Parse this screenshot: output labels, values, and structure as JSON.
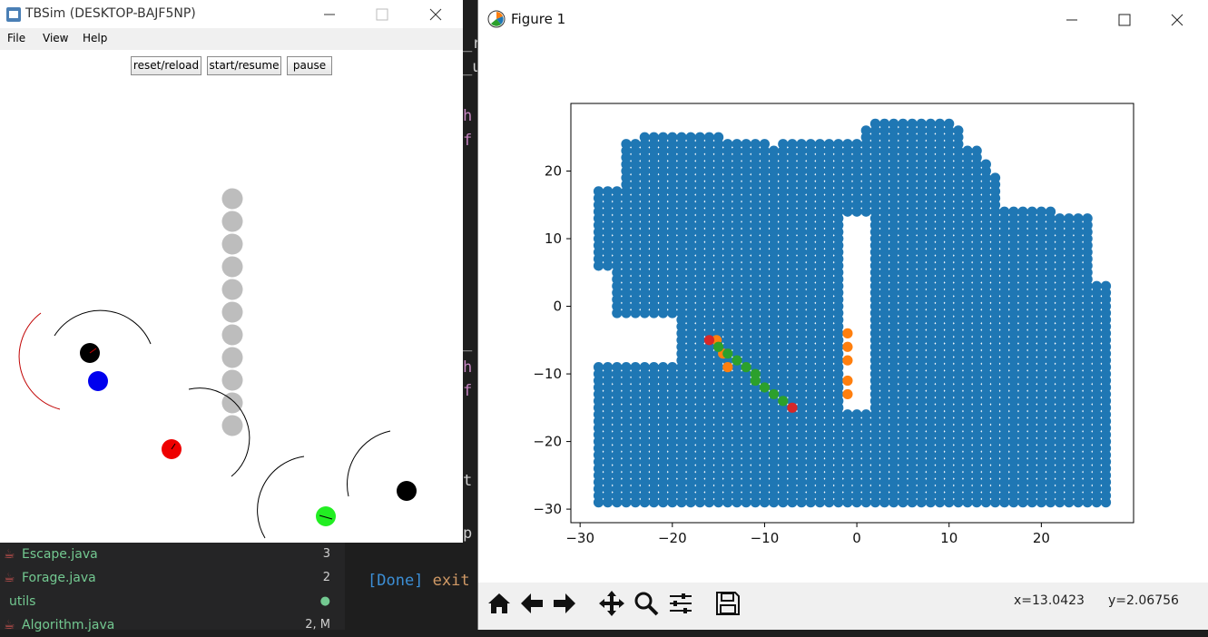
{
  "tbsim": {
    "title": "TBSim (DESKTOP-BAJF5NP)",
    "menu": [
      "File",
      "View",
      "Help"
    ],
    "buttons": {
      "reset": "reset/reload",
      "start": "start/resume",
      "pause": "pause"
    }
  },
  "figure": {
    "title": "Figure 1",
    "status_x": "x=13.0423",
    "status_y": "y=2.06756",
    "toolbar": [
      "home-icon",
      "back-icon",
      "forward-icon",
      "pan-icon",
      "zoom-icon",
      "configure-icon",
      "save-icon"
    ]
  },
  "explorer": {
    "files": [
      {
        "name": "Escape.java",
        "badge": "3"
      },
      {
        "name": "Forage.java",
        "badge": "2"
      },
      {
        "name": "utils",
        "badge": "●"
      },
      {
        "name": "Algorithm.java",
        "badge": "2, M"
      }
    ]
  },
  "terminal": {
    "line1_tag": "[Done]",
    "line1_text": " exit"
  },
  "colors": {
    "blue": "#1f77b4",
    "orange": "#ff7f0e",
    "green": "#2ca02c",
    "red": "#d62728"
  },
  "chart_data": {
    "type": "scatter",
    "title": "",
    "xlabel": "",
    "ylabel": "",
    "xlim": [
      -31,
      30
    ],
    "ylim": [
      -32,
      30
    ],
    "xticks": [
      -30,
      -20,
      -10,
      0,
      10,
      20
    ],
    "yticks": [
      -30,
      -20,
      -10,
      0,
      10,
      20
    ],
    "grid": false,
    "series": [
      {
        "color": "#1f77b4",
        "description_values": "dense grid of free-space points, columns from x=-28 to x=27 step 1",
        "columns": [
          [
            -28,
            -29,
            17
          ],
          [
            -27,
            -29,
            17
          ],
          [
            -26,
            -29,
            17
          ],
          [
            -25,
            -29,
            24
          ],
          [
            -24,
            -29,
            24
          ],
          [
            -23,
            -29,
            25
          ],
          [
            -22,
            -29,
            25
          ],
          [
            -21,
            -29,
            25
          ],
          [
            -20,
            -29,
            25
          ],
          [
            -19,
            -29,
            25
          ],
          [
            -18,
            -29,
            25
          ],
          [
            -17,
            -29,
            25
          ],
          [
            -16,
            -29,
            25
          ],
          [
            -15,
            -29,
            25
          ],
          [
            -14,
            -29,
            24
          ],
          [
            -13,
            -29,
            24
          ],
          [
            -12,
            -29,
            24
          ],
          [
            -11,
            -29,
            24
          ],
          [
            -10,
            -29,
            24
          ],
          [
            -9,
            -29,
            23
          ],
          [
            -8,
            -29,
            24
          ],
          [
            -7,
            -29,
            24
          ],
          [
            -6,
            -29,
            24
          ],
          [
            -5,
            -29,
            24
          ],
          [
            -4,
            -29,
            24
          ],
          [
            -3,
            -29,
            24
          ],
          [
            -2,
            -29,
            24
          ],
          [
            -1,
            -29,
            24
          ],
          [
            0,
            -29,
            24
          ],
          [
            1,
            -29,
            26
          ],
          [
            2,
            -29,
            27
          ],
          [
            3,
            -29,
            27
          ],
          [
            4,
            -29,
            27
          ],
          [
            5,
            -29,
            27
          ],
          [
            6,
            -29,
            27
          ],
          [
            7,
            -29,
            27
          ],
          [
            8,
            -29,
            27
          ],
          [
            9,
            -29,
            27
          ],
          [
            10,
            -29,
            27
          ],
          [
            11,
            -29,
            26
          ],
          [
            12,
            -29,
            23
          ],
          [
            13,
            -29,
            23
          ],
          [
            14,
            -29,
            21
          ],
          [
            15,
            -29,
            19
          ],
          [
            16,
            -29,
            14
          ],
          [
            17,
            -29,
            14
          ],
          [
            18,
            -29,
            14
          ],
          [
            19,
            -29,
            14
          ],
          [
            20,
            -29,
            14
          ],
          [
            21,
            -29,
            14
          ],
          [
            22,
            -29,
            13
          ],
          [
            23,
            -29,
            13
          ],
          [
            24,
            -29,
            13
          ],
          [
            25,
            -29,
            13
          ],
          [
            26,
            -29,
            3
          ],
          [
            27,
            -29,
            3
          ]
        ]
      },
      {
        "color": "#ff7f0e",
        "x": [
          -15.2,
          -14,
          -14.5,
          -1,
          -1,
          -1,
          -1,
          -1
        ],
        "y": [
          -5,
          -9,
          -7,
          -4,
          -6,
          -8,
          -11,
          -13
        ]
      },
      {
        "color": "#2ca02c",
        "x": [
          -15,
          -14,
          -13,
          -12,
          -11,
          -11,
          -10,
          -9,
          -8
        ],
        "y": [
          -6,
          -7,
          -8,
          -9,
          -10,
          -11,
          -12,
          -13,
          -14
        ]
      },
      {
        "color": "#d62728",
        "x": [
          -16,
          -7
        ],
        "y": [
          -5,
          -15
        ]
      }
    ]
  }
}
